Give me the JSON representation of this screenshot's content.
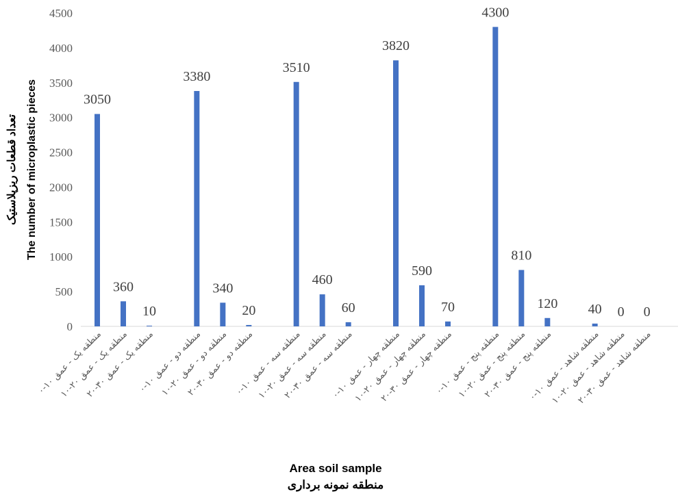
{
  "chart_data": {
    "type": "bar",
    "categories": [
      "منطقه یک - عمق ۱۰-۰",
      "منطقه یک - عمق ۲۰-۱۰",
      "منطقه یک - عمق ۳۰-۲۰",
      "منطقه دو - عمق ۱۰-۰",
      "منطقه دو - عمق ۲۰-۱۰",
      "منطقه دو - عمق ۳۰-۲۰",
      "منطقه سه - عمق ۱۰-۰",
      "منطقه سه - عمق ۲۰-۱۰",
      "منطقه سه - عمق ۳۰-۲۰",
      "منطقه چهار - عمق ۱۰-۰",
      "منطقه چهار - عمق ۲۰-۱۰",
      "منطقه چهار - عمق ۳۰-۲۰",
      "منطقه پنج - عمق ۱۰-۰",
      "منطقه پنج - عمق ۲۰-۱۰",
      "منطقه پنج - عمق ۳۰-۲۰",
      "منطقه شاهد - عمق ۱۰-۰",
      "منطقه شاهد - عمق ۲۰-۱۰",
      "منطقه شاهد - عمق ۳۰-۲۰"
    ],
    "values": [
      3050,
      360,
      10,
      3380,
      340,
      20,
      3510,
      460,
      60,
      3820,
      590,
      70,
      4300,
      810,
      120,
      40,
      0,
      0
    ],
    "ylim": [
      0,
      4500
    ],
    "yticks": [
      0,
      500,
      1000,
      1500,
      2000,
      2500,
      3000,
      3500,
      4000,
      4500
    ],
    "ylabel_fa": "تعداد قطعات ریزپلاستیک",
    "ylabel_en": "The number of microplastic pieces",
    "xlabel_en": "Area soil sample",
    "xlabel_fa": "منطقه نمونه برداری",
    "bar_color": "#4472c4",
    "grid": false,
    "data_labels": true
  }
}
